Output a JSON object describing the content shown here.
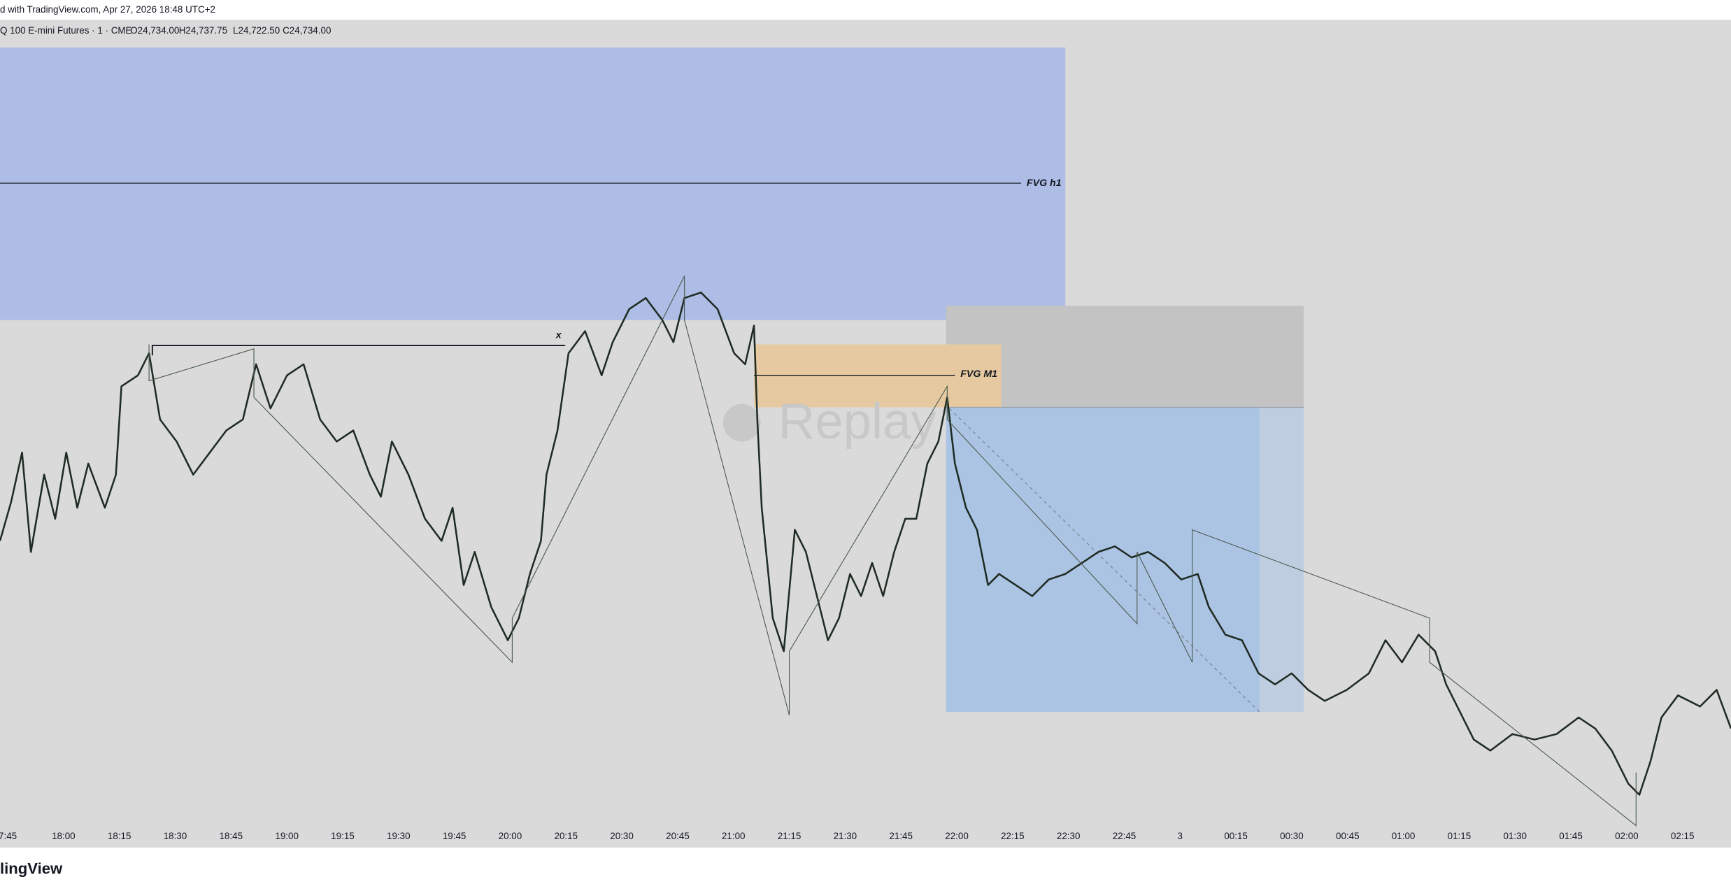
{
  "header": {
    "title": "d with TradingView.com, Apr 27, 2026 18:48 UTC+2"
  },
  "legend": {
    "symbol": "Q 100 E-mini Futures · 1 · CME",
    "open": "O24,734.00",
    "high": "H24,737.75",
    "low": "L24,722.50",
    "close": "C24,734.00"
  },
  "annotations": {
    "fvg_h1": "FVG h1",
    "fvg_m1": "FVG M1",
    "sweep": "x"
  },
  "watermark": "Replay",
  "time_axis": [
    "7:45",
    "18:00",
    "18:15",
    "18:30",
    "18:45",
    "19:00",
    "19:15",
    "19:30",
    "19:45",
    "20:00",
    "20:15",
    "20:30",
    "20:45",
    "21:00",
    "21:15",
    "21:30",
    "21:45",
    "22:00",
    "22:15",
    "22:30",
    "22:45",
    "3",
    "00:15",
    "00:30",
    "00:45",
    "01:00",
    "01:15",
    "01:30",
    "01:45",
    "02:00",
    "02:15"
  ],
  "footer": "lingView"
}
